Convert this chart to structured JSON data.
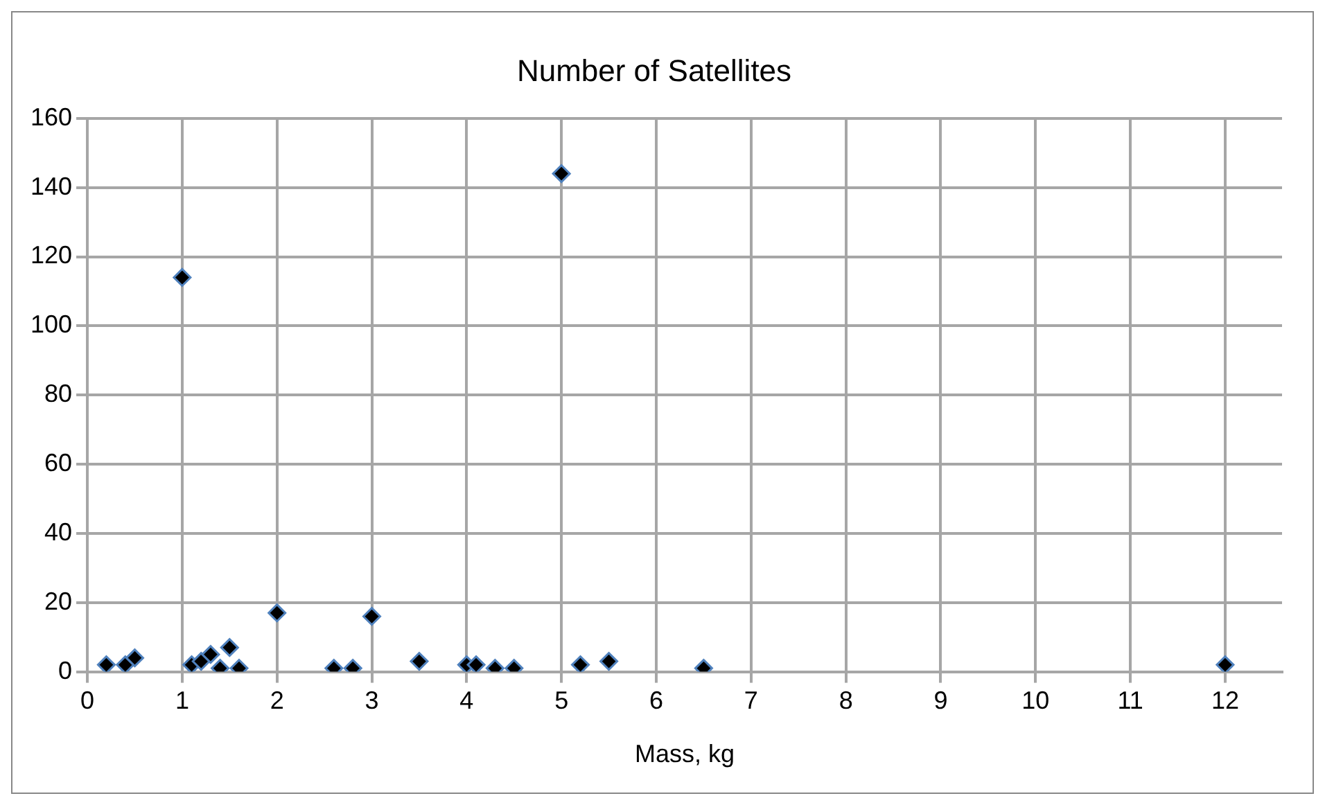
{
  "chart_data": {
    "type": "scatter",
    "title": "Number of Satellites",
    "xlabel": "Mass, kg",
    "x": [
      0.2,
      0.4,
      0.5,
      1,
      1.1,
      1.2,
      1.3,
      1.4,
      1.5,
      1.6,
      2,
      2.6,
      2.8,
      3,
      3.5,
      4,
      4.1,
      4.3,
      4.5,
      5,
      5.2,
      5.5,
      6.5,
      12
    ],
    "series": [
      {
        "color": "#000000",
        "values": [
          2,
          2,
          4,
          114,
          2,
          3,
          5,
          1,
          7,
          1,
          17,
          1,
          1,
          16,
          3,
          2,
          2,
          1,
          1,
          144,
          2,
          3,
          1,
          2
        ]
      }
    ],
    "xlim": [
      0,
      12.6
    ],
    "xticks": [
      0,
      1,
      2,
      3,
      4,
      5,
      6,
      7,
      8,
      9,
      10,
      11,
      12
    ],
    "ylim": [
      0,
      160
    ],
    "yticks": [
      0,
      20,
      40,
      60,
      80,
      100,
      120,
      140,
      160
    ],
    "grid": true,
    "marker": "diamond",
    "legend": false
  }
}
